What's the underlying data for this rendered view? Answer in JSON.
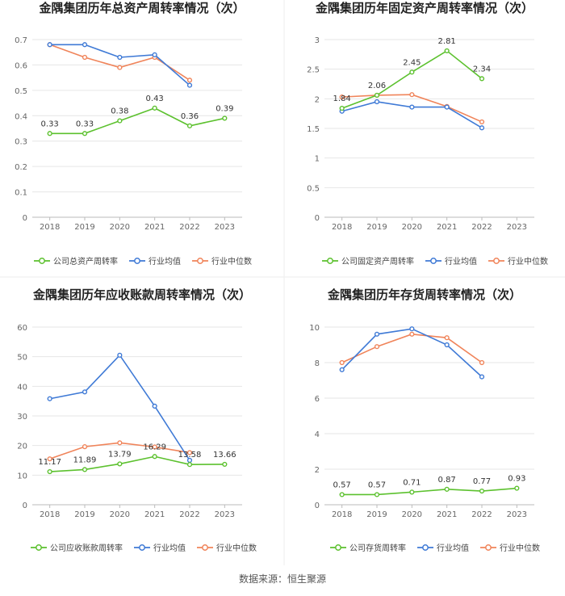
{
  "source_note": "数据来源：恒生聚源",
  "legend_labels": {
    "industry_avg": "行业均值",
    "industry_median": "行业中位数"
  },
  "colors": {
    "company": "#5cc12e",
    "industry_avg": "#3f7ad6",
    "industry_median": "#f0845a",
    "grid": "#e6e6e6",
    "axis_text": "#666666",
    "title": "#222222",
    "divider": "#eeeeee"
  },
  "chart_data": [
    {
      "type": "line",
      "title": "金隅集团历年总资产周转率情况（次）",
      "x": [
        "2018",
        "2019",
        "2020",
        "2021",
        "2022",
        "2023"
      ],
      "ylim": [
        0,
        0.7
      ],
      "yticks": [
        "0",
        "0.1",
        "0.2",
        "0.3",
        "0.4",
        "0.5",
        "0.6",
        "0.7"
      ],
      "company_label": "公司总资产周转率",
      "company_values": [
        0.33,
        0.33,
        0.38,
        0.43,
        0.36,
        0.39
      ],
      "company_data_labels": [
        "0.33",
        "0.33",
        "0.38",
        "0.43",
        "0.36",
        "0.39"
      ],
      "industry_avg": [
        0.68,
        0.68,
        0.63,
        0.64,
        0.52,
        null
      ],
      "industry_median": [
        0.68,
        0.63,
        0.59,
        0.63,
        0.54,
        null
      ],
      "grid": true,
      "legend": "bottom"
    },
    {
      "type": "line",
      "title": "金隅集团历年固定资产周转率情况（次）",
      "x": [
        "2018",
        "2019",
        "2020",
        "2021",
        "2022",
        "2023"
      ],
      "ylim": [
        0,
        3
      ],
      "yticks": [
        "0",
        "0.5",
        "1",
        "1.5",
        "2",
        "2.5",
        "3"
      ],
      "company_label": "公司固定资产周转率",
      "company_values": [
        1.84,
        2.06,
        2.45,
        2.81,
        2.34,
        null
      ],
      "company_data_labels": [
        "1.84",
        "2.06",
        "2.45",
        "2.81",
        "2.34",
        ""
      ],
      "industry_avg": [
        1.79,
        1.95,
        1.86,
        1.86,
        1.51,
        null
      ],
      "industry_median": [
        2.03,
        2.06,
        2.07,
        1.87,
        1.61,
        null
      ],
      "grid": true,
      "legend": "bottom"
    },
    {
      "type": "line",
      "title": "金隅集团历年应收账款周转率情况（次）",
      "x": [
        "2018",
        "2019",
        "2020",
        "2021",
        "2022",
        "2023"
      ],
      "ylim": [
        0,
        60
      ],
      "yticks": [
        "0",
        "10",
        "20",
        "30",
        "40",
        "50",
        "60"
      ],
      "company_label": "公司应收账款周转率",
      "company_values": [
        11.17,
        11.89,
        13.79,
        16.29,
        13.58,
        13.66
      ],
      "company_data_labels": [
        "11.17",
        "11.89",
        "13.79",
        "16.29",
        "13.58",
        "13.66"
      ],
      "industry_avg": [
        35.8,
        38.1,
        50.5,
        33.3,
        15.0,
        null
      ],
      "industry_median": [
        15.5,
        19.6,
        20.9,
        19.5,
        17.6,
        null
      ],
      "grid": true,
      "legend": "bottom"
    },
    {
      "type": "line",
      "title": "金隅集团历年存货周转率情况（次）",
      "x": [
        "2018",
        "2019",
        "2020",
        "2021",
        "2022",
        "2023"
      ],
      "ylim": [
        0,
        10
      ],
      "yticks": [
        "0",
        "2",
        "4",
        "6",
        "8",
        "10"
      ],
      "company_label": "公司存货周转率",
      "company_values": [
        0.57,
        0.57,
        0.71,
        0.87,
        0.77,
        0.93
      ],
      "company_data_labels": [
        "0.57",
        "0.57",
        "0.71",
        "0.87",
        "0.77",
        "0.93"
      ],
      "industry_avg": [
        7.6,
        9.6,
        9.9,
        9.0,
        7.2,
        null
      ],
      "industry_median": [
        8.0,
        8.9,
        9.6,
        9.4,
        8.0,
        null
      ],
      "grid": true,
      "legend": "bottom"
    }
  ]
}
